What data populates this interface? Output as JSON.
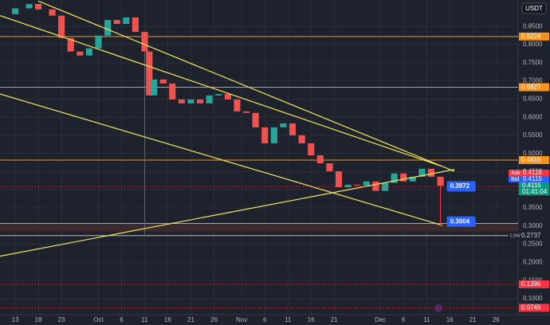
{
  "currency": "USDT",
  "chart_data": {
    "type": "candles",
    "x": [
      -3,
      0,
      3,
      5,
      8,
      10,
      12,
      14,
      16,
      18,
      20,
      22,
      24,
      26,
      28,
      29,
      30,
      32,
      34,
      36,
      38,
      40,
      42,
      44,
      46,
      48,
      50,
      52,
      54,
      56,
      58,
      60,
      62,
      64,
      66,
      68,
      70,
      72,
      74,
      76,
      78,
      80,
      82,
      84,
      86,
      88,
      90,
      92
    ],
    "values": [
      0.884,
      0.9,
      0.912,
      0.897,
      0.88,
      0.818,
      0.781,
      0.77,
      0.79,
      0.825,
      0.868,
      0.857,
      0.875,
      0.835,
      0.781,
      0.66,
      0.704,
      0.693,
      0.649,
      0.638,
      0.649,
      0.638,
      0.66,
      0.664,
      0.649,
      0.616,
      0.612,
      0.572,
      0.528,
      0.572,
      0.583,
      0.55,
      0.528,
      0.495,
      0.473,
      0.451,
      0.407,
      0.414,
      0.412,
      0.423,
      0.397,
      0.419,
      0.445,
      0.423,
      0.436,
      0.458,
      0.436,
      0.411
    ],
    "up_color": "#26a69a",
    "down_color": "#ef5350",
    "xlim": [
      -3.3,
      108.8
    ],
    "xticks": [
      {
        "value": 0,
        "label": "13"
      },
      {
        "value": 5,
        "label": "18"
      },
      {
        "value": 10,
        "label": "23"
      },
      {
        "value": 18,
        "label": "Oct"
      },
      {
        "value": 23,
        "label": "6"
      },
      {
        "value": 28,
        "label": "11"
      },
      {
        "value": 33,
        "label": "16"
      },
      {
        "value": 38,
        "label": "21"
      },
      {
        "value": 43,
        "label": "26"
      },
      {
        "value": 49,
        "label": "Nov"
      },
      {
        "value": 54,
        "label": "6"
      },
      {
        "value": 59,
        "label": "11"
      },
      {
        "value": 64,
        "label": "16"
      },
      {
        "value": 69,
        "label": "21"
      },
      {
        "value": 79,
        "label": "Dec"
      },
      {
        "value": 84,
        "label": "6"
      },
      {
        "value": 89,
        "label": "11"
      },
      {
        "value": 94,
        "label": "16"
      },
      {
        "value": 99,
        "label": "21"
      },
      {
        "value": 104,
        "label": "26"
      }
    ],
    "ylim": [
      0.056,
      0.923
    ],
    "yticks": [
      {
        "value": 0.1,
        "label": "0.1000"
      },
      {
        "value": 0.15,
        "label": "0.1500"
      },
      {
        "value": 0.2,
        "label": "0.2000"
      },
      {
        "value": 0.25,
        "label": "0.2500"
      },
      {
        "value": 0.3,
        "label": "0.3000"
      },
      {
        "value": 0.35,
        "label": "0.3500"
      },
      {
        "value": 0.4,
        "label": "0.4000"
      },
      {
        "value": 0.45,
        "label": "0.4500"
      },
      {
        "value": 0.5,
        "label": "0.5000"
      },
      {
        "value": 0.55,
        "label": "0.5500"
      },
      {
        "value": 0.6,
        "label": "0.6000"
      },
      {
        "value": 0.65,
        "label": "0.6500"
      },
      {
        "value": 0.7,
        "label": "0.7000"
      },
      {
        "value": 0.75,
        "label": "0.7500"
      },
      {
        "value": 0.8,
        "label": "0.8000"
      },
      {
        "value": 0.85,
        "label": "0.8500"
      }
    ],
    "grid": true,
    "levels": [
      {
        "value": 0.8224,
        "color": "#f7931a"
      },
      {
        "value": 0.6827,
        "color": "#f7931a"
      },
      {
        "value": 0.4819,
        "color": "#f7931a"
      }
    ],
    "alerts": [
      {
        "value": 0.1396,
        "color": "#f23645"
      },
      {
        "value": 0.0749,
        "color": "#f23645"
      }
    ],
    "zone": {
      "top": 0.307,
      "bottom": 0.285,
      "color": "#3b2a2e"
    },
    "low": {
      "label": "Low",
      "value": 0.2737
    },
    "ask": {
      "label": "Ask",
      "value": 0.4116
    },
    "bid": {
      "label": "Bid",
      "value": 0.4115
    },
    "last": 0.4115,
    "countdown": "01:41:04",
    "prev": 0.4091,
    "trendlines": [
      {
        "x": [
          5,
          95
        ],
        "y": [
          0.92,
          0.451
        ]
      },
      {
        "x": [
          -3.3,
          92
        ],
        "y": [
          0.88,
          0.466
        ]
      },
      {
        "x": [
          -3.3,
          92.4
        ],
        "y": [
          0.664,
          0.302
        ]
      },
      {
        "x": [
          -3.3,
          95
        ],
        "y": [
          0.217,
          0.456
        ]
      }
    ],
    "vline": {
      "x": 28,
      "y": [
        0.78,
        0.2737
      ]
    },
    "targets": [
      {
        "x": 92,
        "value": 0.3972
      },
      {
        "x": 92,
        "value": 0.3004
      }
    ]
  }
}
